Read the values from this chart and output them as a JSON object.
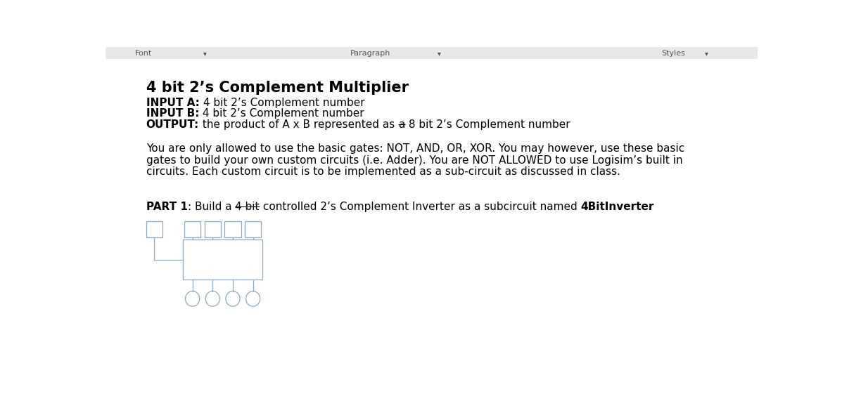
{
  "title": "4 bit 2’s Complement Multiplier",
  "bg_color": "#ffffff",
  "text_color": "#000000",
  "circuit_color": "#8aa8bf",
  "line1_bold": "INPUT A:",
  "line1_rest": " 4 bit 2’s Complement number",
  "line2_bold": "INPUT B:",
  "line2_rest": " 4 bit 2’s Complement number",
  "line3_bold": "OUTPUT:",
  "line3_rest": " the product of A x B represented as a 8 bit 2’s Complement number",
  "para1_line1": "You are only allowed to use the basic gates: NOT, AND, OR, XOR. You may however, use these basic",
  "para1_line2": "gates to build your own custom circuits (i.e. Adder). You are NOT ALLOWED to use Logisim’s built in",
  "para1_line3": "circuits. Each custom circuit is to be implemented as a sub-circuit as discussed in class.",
  "part1_pieces": [
    {
      "text": "PART 1",
      "bold": true
    },
    {
      "text": ": Build a ",
      "bold": false
    },
    {
      "text": "4 bit",
      "bold": false,
      "underline": true
    },
    {
      "text": " controlled 2’s Complement Inverter as a subcircuit named ",
      "bold": false
    },
    {
      "text": "4BitInverter",
      "bold": true
    }
  ],
  "font_size_title": 15,
  "font_size_body": 11,
  "font_size_part": 11
}
